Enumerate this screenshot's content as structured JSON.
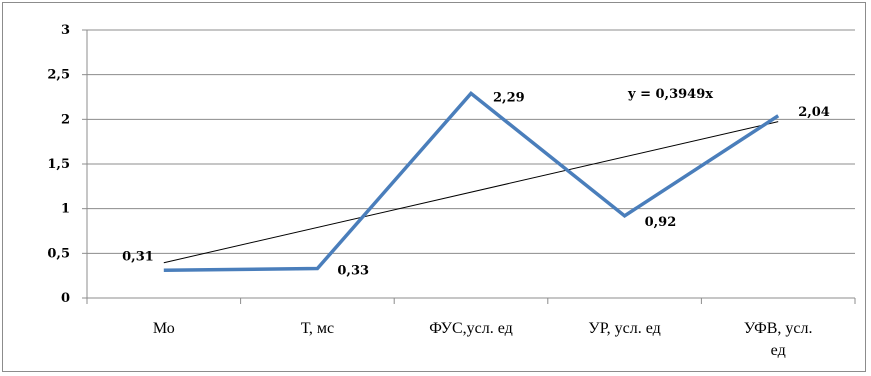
{
  "chart_data": {
    "type": "line",
    "title": "",
    "xlabel": "",
    "ylabel": "",
    "categories": [
      "Мо",
      "Т, мс",
      "ФУС,усл. ед",
      "УР, усл. ед",
      "УФВ, усл. ед"
    ],
    "series": [
      {
        "values": [
          0.31,
          0.33,
          2.29,
          0.92,
          2.04
        ],
        "data_labels": [
          "0,31",
          "0,33",
          "2,29",
          "0,92",
          "2,04"
        ],
        "color": "#4a7ebb"
      }
    ],
    "trendline": {
      "equation": "y = 0,3949x",
      "slope": 0.3949,
      "color": "#000000"
    },
    "ylim": [
      0,
      3
    ],
    "yticks": [
      0,
      0.5,
      1,
      1.5,
      2,
      2.5,
      3
    ],
    "ytick_labels": [
      "0",
      "0,5",
      "1",
      "1,5",
      "2",
      "2,5",
      "3"
    ],
    "grid": true,
    "legend": "none"
  }
}
